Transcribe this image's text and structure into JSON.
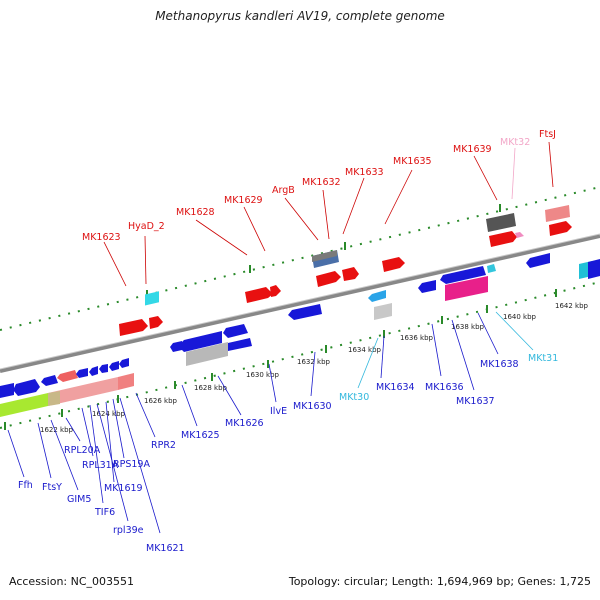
{
  "title": "Methanopyrus kandleri AV19, complete genome",
  "footer": {
    "accession": "Accession: NC_003551",
    "summary": "Topology: circular; Length: 1,694,969 bp; Genes: 1,725"
  },
  "colors": {
    "forward": "#ee1111",
    "reverse": "#1a1adc",
    "trna": "#33c6dd",
    "rna_pink": "#f2a7c8",
    "backbone": "#8a8a8a",
    "ticks": "#2a8a2a"
  },
  "kbp_labels": [
    "1622 kbp",
    "1624 kbp",
    "1626 kbp",
    "1628 kbp",
    "1630 kbp",
    "1632 kbp",
    "1634 kbp",
    "1636 kbp",
    "1638 kbp",
    "1640 kbp",
    "1642 kbp"
  ],
  "top_labels": [
    "MK1623",
    "HyaD_2",
    "MK1628",
    "MK1629",
    "ArgB",
    "MK1632",
    "MK1633",
    "MK1635",
    "MK1639",
    "MKt32",
    "FtsJ"
  ],
  "bottom_labels": [
    "Ffh",
    "FtsY",
    "RPL20A",
    "GIM5",
    "RPL31A",
    "TIF6",
    "rpl39e",
    "MK1619",
    "RPS19A",
    "MK1621",
    "RPR2",
    "MK1625",
    "MK1626",
    "IlvE",
    "MK1630",
    "MKt30",
    "MK1634",
    "MK1636",
    "MK1637",
    "MK1638",
    "MKt31"
  ]
}
